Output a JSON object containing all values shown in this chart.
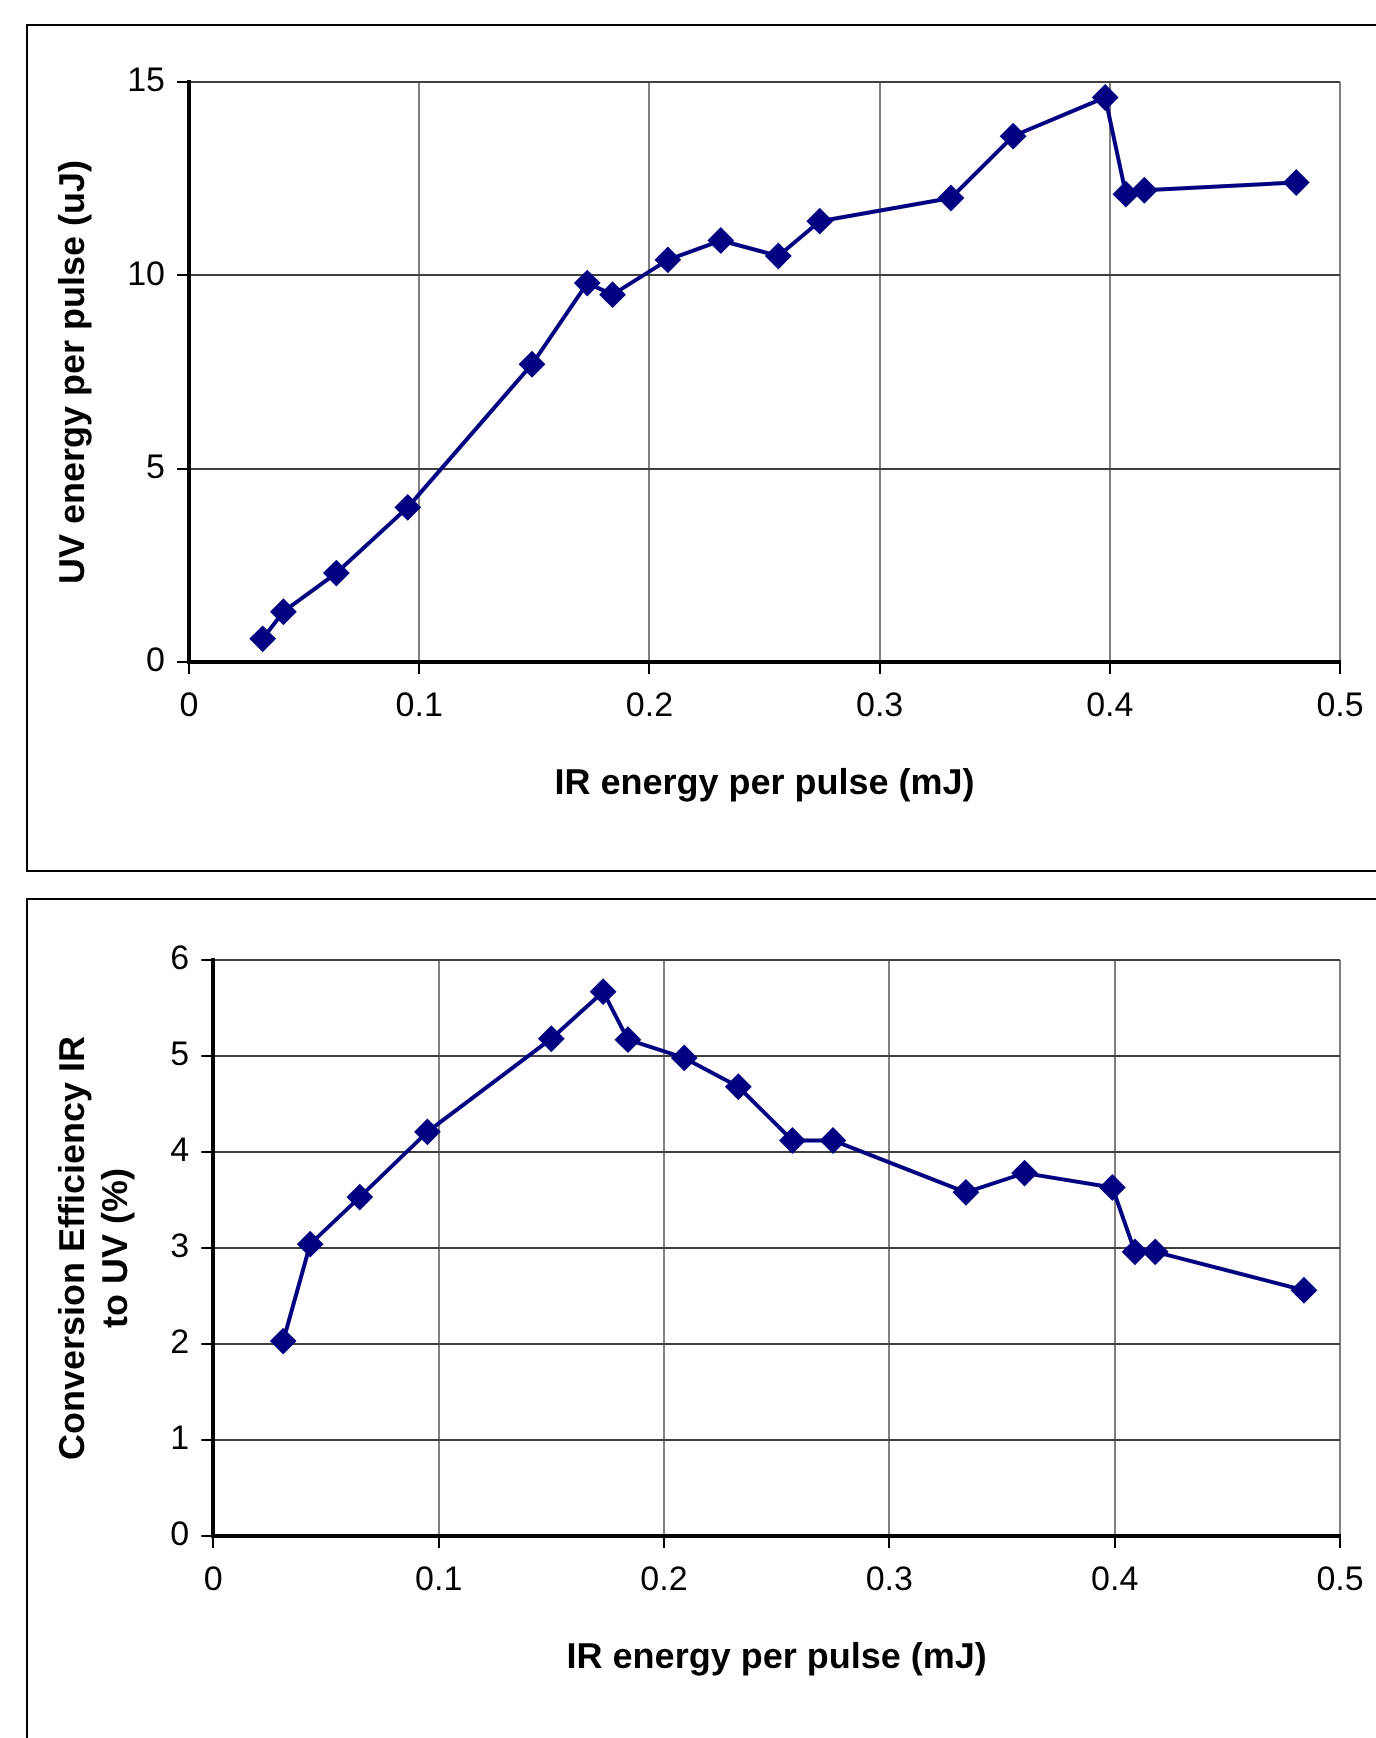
{
  "chart_data": [
    {
      "type": "line",
      "xlabel": "IR energy per pulse (mJ)",
      "ylabel": "UV energy per pulse (uJ)",
      "x": [
        0.032,
        0.041,
        0.064,
        0.095,
        0.149,
        0.173,
        0.184,
        0.208,
        0.231,
        0.256,
        0.274,
        0.331,
        0.358,
        0.398,
        0.407,
        0.415,
        0.481
      ],
      "series": [
        {
          "color": "#000080",
          "values": [
            0.6,
            1.3,
            2.3,
            4.0,
            7.7,
            9.8,
            9.5,
            10.4,
            10.9,
            10.5,
            11.4,
            12.0,
            13.6,
            14.6,
            12.1,
            12.2,
            12.4
          ]
        }
      ],
      "xlim": [
        0,
        0.5
      ],
      "xticks": [
        0,
        0.1,
        0.2,
        0.3,
        0.4,
        0.5
      ],
      "ylim": [
        0,
        15
      ],
      "yticks": [
        0,
        5,
        10,
        15
      ],
      "grid": true,
      "legend": false,
      "marker": "diamond",
      "line_style": "solid"
    },
    {
      "type": "line",
      "xlabel": "IR energy per pulse (mJ)",
      "ylabel": "Conversion Efficiency IR\nto UV (%)",
      "x": [
        0.031,
        0.043,
        0.065,
        0.095,
        0.15,
        0.173,
        0.184,
        0.209,
        0.233,
        0.257,
        0.275,
        0.334,
        0.36,
        0.399,
        0.409,
        0.418,
        0.484
      ],
      "series": [
        {
          "color": "#000080",
          "values": [
            2.03,
            3.04,
            3.53,
            4.21,
            5.18,
            5.67,
            5.17,
            4.98,
            4.68,
            4.12,
            4.12,
            3.58,
            3.78,
            3.63,
            2.96,
            2.96,
            2.56
          ]
        }
      ],
      "xlim": [
        0,
        0.5
      ],
      "xticks": [
        0,
        0.1,
        0.2,
        0.3,
        0.4,
        0.5
      ],
      "ylim": [
        0,
        6
      ],
      "yticks": [
        0,
        1,
        2,
        3,
        4,
        5,
        6
      ],
      "grid": true,
      "legend": false,
      "marker": "diamond",
      "line_style": "solid"
    }
  ]
}
